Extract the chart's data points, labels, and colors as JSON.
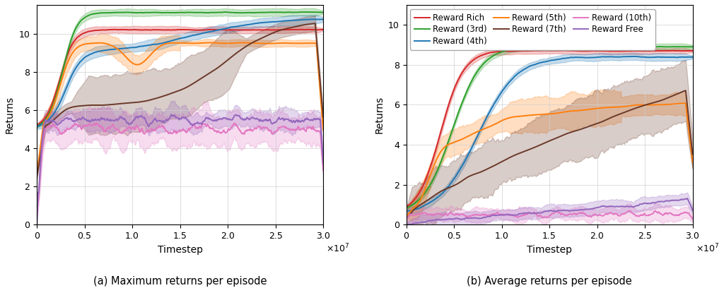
{
  "colors": {
    "rich": "#d62728",
    "3rd": "#2ca02c",
    "4th": "#1f77b4",
    "5th": "#ff7f0e",
    "7th": "#6b3a2a",
    "10th": "#e377c2",
    "free": "#9467bd"
  },
  "alpha_fill": 0.25,
  "n_points": 500,
  "x_max": 30000000.0,
  "title_a": "(a) Maximum returns per episode",
  "title_b": "(b) Average returns per episode",
  "xlabel": "Timestep",
  "ylabel": "Returns",
  "ylim_a": [
    0,
    11.5
  ],
  "ylim_b": [
    0,
    11.0
  ],
  "figsize": [
    10.24,
    4.08
  ],
  "dpi": 100
}
